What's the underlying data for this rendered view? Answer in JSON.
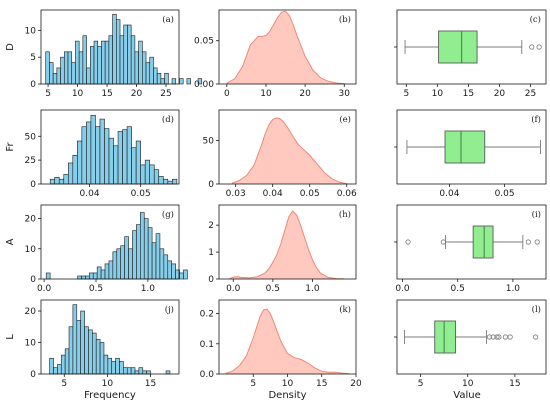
{
  "figure": {
    "col_titles": [
      "Frequency",
      "Density",
      "Value"
    ],
    "colors": {
      "hist_fill": "#87CEEB",
      "hist_edge": "#1a1a1a",
      "kde_fill": "#FFC9C0",
      "kde_line": "#F08878",
      "box_fill": "#90EE90",
      "box_edge": "#5a5a5a",
      "whisker": "#7a7a7a",
      "median": "#4e8f4e",
      "flier": "#7a7a7a",
      "axis": "#1a1a1a"
    }
  },
  "chart_data": [
    {
      "type": "bar",
      "subtype": "histogram",
      "panel_label": "(a)",
      "ylabel": "D",
      "xlabel": "",
      "x_range": [
        3.8,
        27.2
      ],
      "y_range": [
        0,
        13.8
      ],
      "xticks": [
        5,
        10,
        15,
        20,
        25
      ],
      "xtick_labels": [
        "5",
        "10",
        "15",
        "20",
        "25"
      ],
      "yticks": [
        0,
        5,
        10
      ],
      "ytick_labels": [
        "0",
        "5",
        "10"
      ],
      "bin_start": 4.6,
      "bin_width": 0.63,
      "counts": [
        6,
        4,
        2,
        3,
        5,
        6,
        6,
        4,
        8,
        6,
        9,
        3,
        7,
        8,
        7,
        8,
        8,
        9,
        13,
        12,
        9,
        11,
        11,
        9,
        6,
        8,
        6,
        4,
        5,
        3,
        2,
        1,
        2,
        0,
        1,
        0,
        1,
        0,
        1,
        0,
        0,
        1
      ]
    },
    {
      "type": "area",
      "subtype": "density",
      "panel_label": "(b)",
      "ylabel": "",
      "xlabel": "",
      "x_range": [
        -2,
        33
      ],
      "y_range": [
        0,
        0.0855
      ],
      "xticks": [
        0,
        10,
        20,
        30
      ],
      "xtick_labels": [
        "0",
        "10",
        "20",
        "30"
      ],
      "yticks": [
        0,
        0.05
      ],
      "ytick_labels": [
        "0.00",
        "0.05"
      ],
      "x": [
        0,
        2,
        4,
        6,
        8,
        9,
        10,
        11,
        12,
        13,
        14,
        15,
        16,
        17,
        18,
        20,
        22,
        24,
        26,
        28,
        30
      ],
      "y": [
        0.001,
        0.006,
        0.02,
        0.045,
        0.055,
        0.055,
        0.056,
        0.061,
        0.069,
        0.077,
        0.083,
        0.084,
        0.079,
        0.068,
        0.055,
        0.032,
        0.016,
        0.007,
        0.003,
        0.0012,
        0.0003
      ]
    },
    {
      "type": "boxplot",
      "panel_label": "(c)",
      "ylabel": "",
      "xlabel": "",
      "x_range": [
        3.5,
        27.5
      ],
      "xticks": [
        5,
        10,
        15,
        20,
        25
      ],
      "xtick_labels": [
        "5",
        "10",
        "15",
        "20",
        "25"
      ],
      "whisker_low": 4.8,
      "q1": 10.2,
      "median": 13.9,
      "q3": 16.4,
      "whisker_high": 23.6,
      "fliers": [
        25.2,
        26.4
      ]
    },
    {
      "type": "bar",
      "subtype": "histogram",
      "panel_label": "(d)",
      "ylabel": "Fr",
      "xlabel": "",
      "x_range": [
        0.0305,
        0.0575
      ],
      "y_range": [
        0,
        77.5
      ],
      "xticks": [
        0.04,
        0.05
      ],
      "xtick_labels": [
        "0.04",
        "0.05"
      ],
      "yticks": [
        0,
        25,
        50
      ],
      "ytick_labels": [
        "0",
        "25",
        "50"
      ],
      "bin_start": 0.0323,
      "bin_width": 0.000885,
      "counts": [
        5,
        7,
        5,
        10,
        22,
        30,
        45,
        60,
        65,
        72,
        60,
        68,
        58,
        48,
        40,
        55,
        57,
        60,
        38,
        45,
        20,
        25,
        20,
        15,
        8,
        5,
        3,
        5
      ]
    },
    {
      "type": "area",
      "subtype": "density",
      "panel_label": "(e)",
      "ylabel": "",
      "xlabel": "",
      "x_range": [
        0.0255,
        0.0625
      ],
      "y_range": [
        0,
        85
      ],
      "xticks": [
        0.03,
        0.04,
        0.05,
        0.06
      ],
      "xtick_labels": [
        "0.03",
        "0.04",
        "0.05",
        "0.06"
      ],
      "yticks": [
        0,
        50
      ],
      "ytick_labels": [
        "0",
        "50"
      ],
      "x": [
        0.029,
        0.031,
        0.033,
        0.035,
        0.037,
        0.038,
        0.039,
        0.04,
        0.041,
        0.042,
        0.043,
        0.044,
        0.045,
        0.046,
        0.047,
        0.048,
        0.049,
        0.05,
        0.051,
        0.052,
        0.054,
        0.056,
        0.058,
        0.06
      ],
      "y": [
        1,
        4,
        10,
        22,
        45,
        58,
        68,
        74,
        76,
        75,
        71,
        65,
        58,
        51,
        45,
        41,
        37,
        33,
        28,
        23,
        13,
        6,
        2,
        0.5
      ]
    },
    {
      "type": "boxplot",
      "panel_label": "(f)",
      "ylabel": "",
      "xlabel": "",
      "x_range": [
        0.0305,
        0.0575
      ],
      "xticks": [
        0.04,
        0.05
      ],
      "xtick_labels": [
        "0.04",
        "0.05"
      ],
      "whisker_low": 0.0323,
      "q1": 0.0392,
      "median": 0.0421,
      "q3": 0.0464,
      "whisker_high": 0.0565,
      "fliers": []
    },
    {
      "type": "bar",
      "subtype": "histogram",
      "panel_label": "(g)",
      "ylabel": "A",
      "xlabel": "",
      "x_range": [
        -0.03,
        1.3
      ],
      "y_range": [
        0,
        24.5
      ],
      "xticks": [
        0,
        0.5,
        1.0
      ],
      "xtick_labels": [
        "0.0",
        "0.5",
        "1.0"
      ],
      "yticks": [
        0,
        10,
        20
      ],
      "ytick_labels": [
        "0",
        "10",
        "20"
      ],
      "bin_start": 0.02,
      "bin_width": 0.0378,
      "counts": [
        2,
        0,
        0,
        0,
        0,
        0,
        0,
        0,
        1,
        1,
        1,
        2,
        2,
        4,
        3,
        5,
        6,
        9,
        10,
        11,
        14,
        10,
        16,
        18,
        22,
        20,
        17,
        12,
        15,
        10,
        8,
        6,
        5,
        3,
        2,
        3
      ]
    },
    {
      "type": "area",
      "subtype": "density",
      "panel_label": "(h)",
      "ylabel": "",
      "xlabel": "",
      "x_range": [
        -0.18,
        1.55
      ],
      "y_range": [
        0,
        2.75
      ],
      "xticks": [
        0,
        0.5,
        1.0
      ],
      "xtick_labels": [
        "0.0",
        "0.5",
        "1.0"
      ],
      "yticks": [
        0,
        1,
        2
      ],
      "ytick_labels": [
        "0",
        "1",
        "2"
      ],
      "x": [
        -0.05,
        0,
        0.05,
        0.1,
        0.2,
        0.3,
        0.4,
        0.45,
        0.5,
        0.55,
        0.6,
        0.65,
        0.7,
        0.75,
        0.8,
        0.85,
        0.9,
        0.95,
        1.0,
        1.05,
        1.1,
        1.2,
        1.3,
        1.4
      ],
      "y": [
        0.01,
        0.07,
        0.09,
        0.06,
        0.04,
        0.08,
        0.22,
        0.38,
        0.62,
        0.9,
        1.3,
        1.8,
        2.3,
        2.52,
        2.38,
        2.0,
        1.55,
        1.1,
        0.72,
        0.42,
        0.22,
        0.06,
        0.015,
        0.003
      ]
    },
    {
      "type": "boxplot",
      "panel_label": "(i)",
      "ylabel": "",
      "xlabel": "",
      "x_range": [
        -0.05,
        1.3
      ],
      "xticks": [
        0,
        0.5,
        1.0
      ],
      "xtick_labels": [
        "0.0",
        "0.5",
        "1.0"
      ],
      "whisker_low": 0.39,
      "q1": 0.64,
      "median": 0.74,
      "q3": 0.82,
      "whisker_high": 1.09,
      "fliers": [
        0.05,
        0.37,
        1.14,
        1.22
      ]
    },
    {
      "type": "bar",
      "subtype": "histogram",
      "panel_label": "(j)",
      "ylabel": "L",
      "xlabel": "Frequency",
      "x_range": [
        2.3,
        18.3
      ],
      "y_range": [
        0,
        23.5
      ],
      "xticks": [
        5,
        10,
        15
      ],
      "xtick_labels": [
        "5",
        "10",
        "15"
      ],
      "yticks": [
        0,
        10,
        20
      ],
      "ytick_labels": [
        "0",
        "10",
        "20"
      ],
      "bin_start": 3.3,
      "bin_width": 0.45,
      "counts": [
        5,
        2,
        3,
        6,
        8,
        15,
        22,
        17,
        20,
        15,
        14,
        13,
        11,
        10,
        6,
        5,
        4,
        5,
        4,
        2,
        2,
        2,
        1,
        2,
        1,
        1,
        0,
        0,
        0,
        0,
        1
      ]
    },
    {
      "type": "area",
      "subtype": "density",
      "panel_label": "(k)",
      "ylabel": "",
      "xlabel": "Density",
      "x_range": [
        0,
        20
      ],
      "y_range": [
        0,
        0.245
      ],
      "xticks": [
        5,
        10,
        15,
        20
      ],
      "xtick_labels": [
        "5",
        "10",
        "15",
        "20"
      ],
      "yticks": [
        0,
        0.1,
        0.2
      ],
      "ytick_labels": [
        "0.0",
        "0.1",
        "0.2"
      ],
      "x": [
        1,
        2,
        3,
        4,
        5,
        6,
        6.5,
        7,
        7.5,
        8,
        9,
        10,
        11,
        12,
        13,
        14,
        15,
        16,
        17,
        18,
        19
      ],
      "y": [
        0.002,
        0.01,
        0.028,
        0.06,
        0.12,
        0.19,
        0.212,
        0.215,
        0.2,
        0.172,
        0.11,
        0.068,
        0.054,
        0.048,
        0.036,
        0.02,
        0.009,
        0.006,
        0.006,
        0.003,
        0.001
      ]
    },
    {
      "type": "boxplot",
      "panel_label": "(l)",
      "ylabel": "",
      "xlabel": "Value",
      "x_range": [
        2.5,
        18.3
      ],
      "xticks": [
        5,
        10,
        15
      ],
      "xtick_labels": [
        "5",
        "10",
        "15"
      ],
      "whisker_low": 3.3,
      "q1": 6.5,
      "median": 7.5,
      "q3": 8.7,
      "whisker_high": 12.0,
      "fliers": [
        12.3,
        12.7,
        13.1,
        13.3,
        14.0,
        14.5,
        17.2
      ]
    }
  ]
}
